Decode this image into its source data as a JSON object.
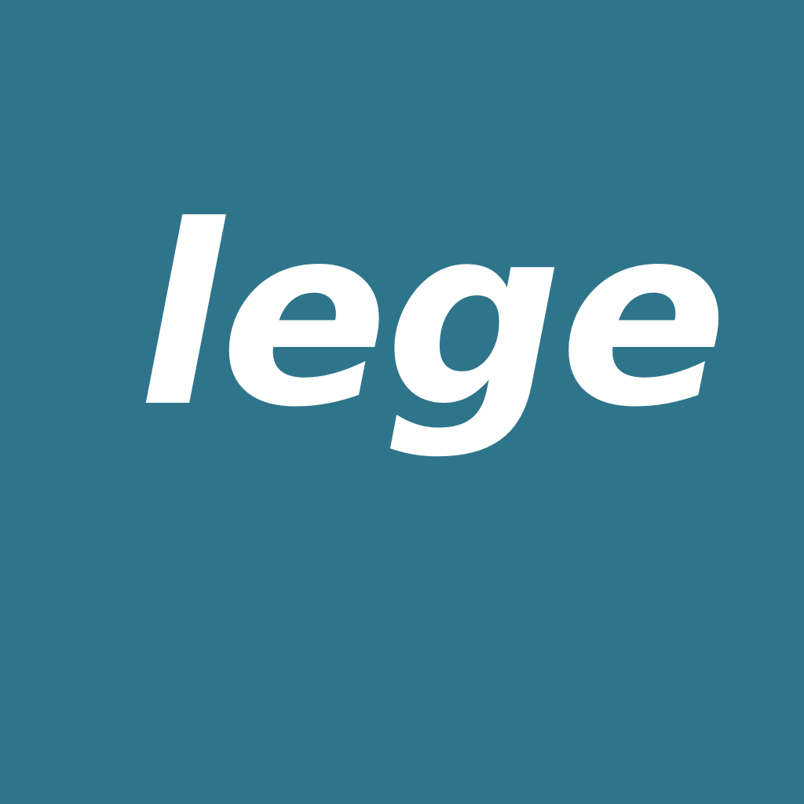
{
  "logo": {
    "wordmark": "lege",
    "background_color": "#2e758c",
    "text_color": "#ffffff"
  }
}
